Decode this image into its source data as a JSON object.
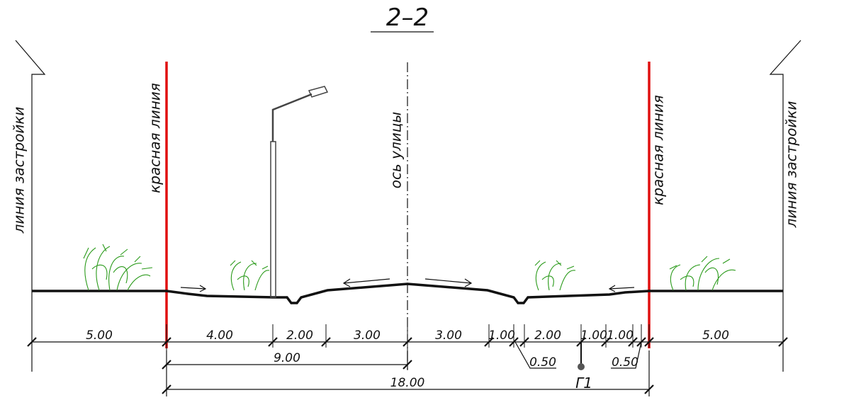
{
  "title": "2–2",
  "labels": {
    "building_line_left": "линия застройки",
    "red_line_left": "красная линия",
    "street_axis": "ось улицы",
    "red_line_right": "красная линия",
    "building_line_right": "линия застройки"
  },
  "dimensions": [
    "5.00",
    "4.00",
    "2.00",
    "3.00",
    "3.00",
    "1.00",
    "2.00",
    "1.00",
    "1.00",
    "5.00"
  ],
  "total_half": "9.00",
  "total": "18.00",
  "offsets": [
    "0.50",
    "0.50"
  ],
  "drain": "Г1"
}
